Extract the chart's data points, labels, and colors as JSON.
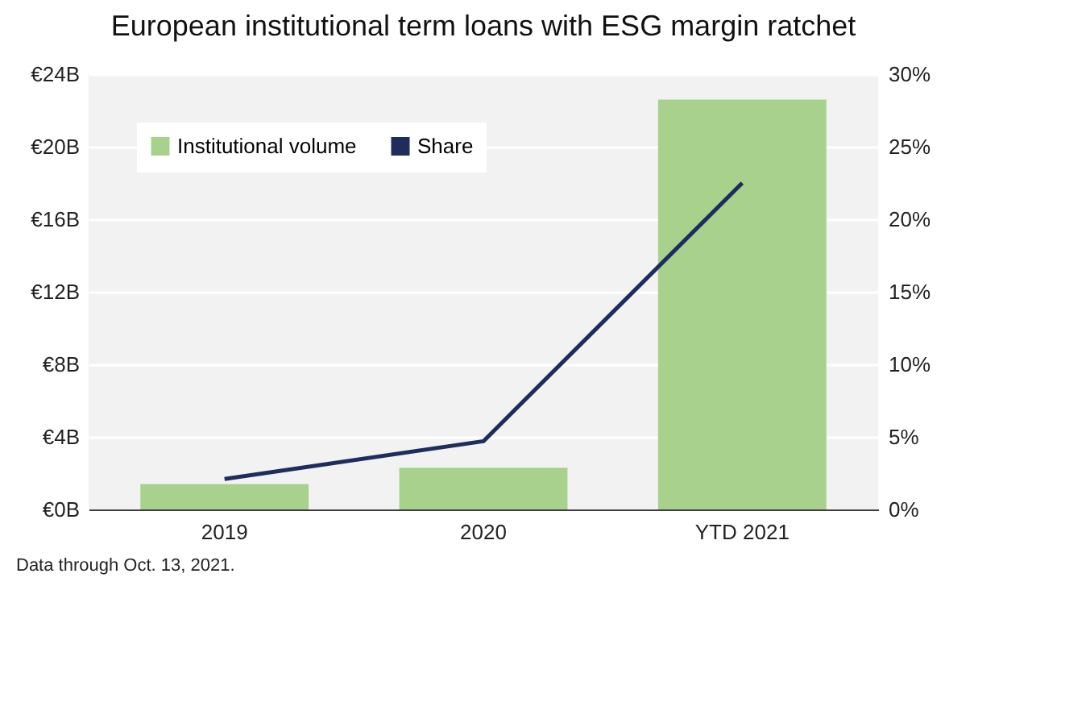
{
  "chart_data": {
    "type": "bar",
    "title": "European institutional term loans with ESG margin ratchet",
    "categories": [
      "2019",
      "2020",
      "YTD 2021"
    ],
    "series": [
      {
        "name": "Institutional volume",
        "color": "#a9d18e",
        "values": [
          1.4,
          2.3,
          22.6
        ]
      },
      {
        "name": "Share",
        "type": "line",
        "axis": "y2",
        "color": "#1f2d5c",
        "values": [
          2.1,
          4.7,
          22.5
        ]
      }
    ],
    "ylim": [
      0,
      24
    ],
    "yticks": [
      {
        "value": 0,
        "label": "€0B"
      },
      {
        "value": 4,
        "label": "€4B"
      },
      {
        "value": 8,
        "label": "€8B"
      },
      {
        "value": 12,
        "label": "€12B"
      },
      {
        "value": 16,
        "label": "€16B"
      },
      {
        "value": 20,
        "label": "€20B"
      },
      {
        "value": 24,
        "label": "€24B"
      }
    ],
    "y2lim": [
      0,
      30
    ],
    "y2ticks": [
      {
        "value": 0,
        "label": "0%"
      },
      {
        "value": 5,
        "label": "5%"
      },
      {
        "value": 10,
        "label": "10%"
      },
      {
        "value": 15,
        "label": "15%"
      },
      {
        "value": 20,
        "label": "20%"
      },
      {
        "value": 25,
        "label": "25%"
      },
      {
        "value": 30,
        "label": "30%"
      }
    ],
    "grid": "y",
    "legend": "top left",
    "marker": "none",
    "annotations": [
      "Data through Oct. 13, 2021."
    ]
  }
}
